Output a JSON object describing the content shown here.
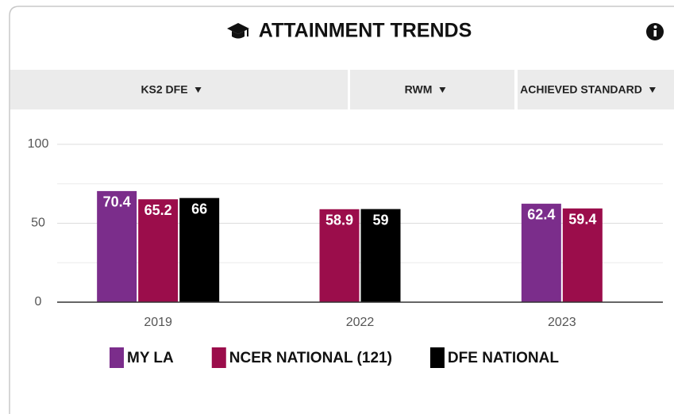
{
  "header": {
    "title": "ATTAINMENT TRENDS"
  },
  "filters": [
    "KS2 DFE",
    "RWM",
    "ACHIEVED STANDARD"
  ],
  "chart_data": {
    "type": "bar",
    "categories": [
      "2019",
      "2022",
      "2023"
    ],
    "series": [
      {
        "name": "MY LA",
        "color": "#7b2d8b",
        "values": [
          70.4,
          null,
          62.4
        ]
      },
      {
        "name": "NCER NATIONAL (121)",
        "color": "#9b0d4b",
        "values": [
          65.2,
          58.9,
          59.4
        ]
      },
      {
        "name": "DFE NATIONAL",
        "color": "#000000",
        "values": [
          66,
          59,
          null
        ]
      }
    ],
    "ylim": [
      0,
      100
    ],
    "yticks": [
      0,
      50,
      100
    ],
    "minor_yticks": [
      25,
      75
    ],
    "grid": true,
    "legend": "bottom"
  }
}
